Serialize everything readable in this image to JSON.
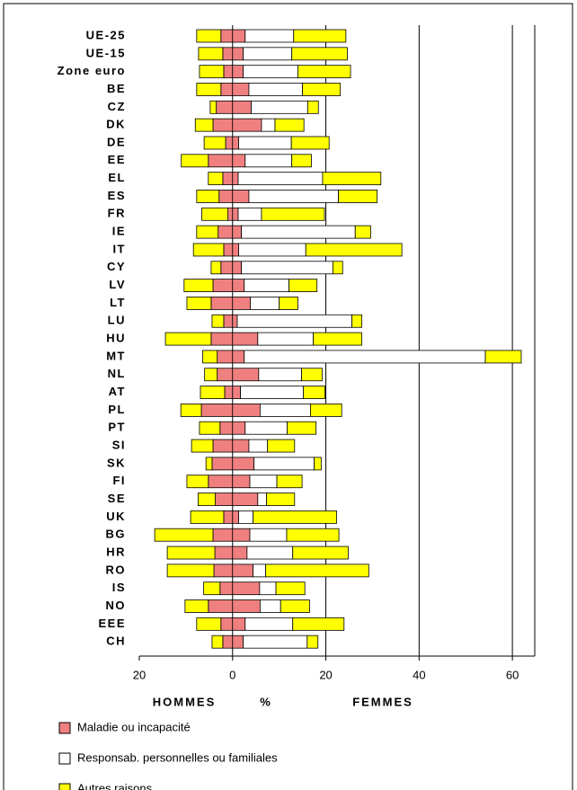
{
  "chart_data": {
    "type": "diverging_bar",
    "x_label_left": "HOMMES",
    "x_label_center": "%",
    "x_label_right": "FEMMES",
    "categories": [
      "UE-25",
      "UE-15",
      "Zone euro",
      "BE",
      "CZ",
      "DK",
      "DE",
      "EE",
      "EL",
      "ES",
      "FR",
      "IE",
      "IT",
      "CY",
      "LV",
      "LT",
      "LU",
      "HU",
      "MT",
      "NL",
      "AT",
      "PL",
      "PT",
      "SI",
      "SK",
      "FI",
      "SE",
      "UK",
      "BG",
      "HR",
      "RO",
      "IS",
      "NO",
      "EEE",
      "CH"
    ],
    "xlim": [
      -20,
      70
    ],
    "xticks": [
      {
        "value": -20,
        "label": "20"
      },
      0,
      20,
      40,
      60
    ],
    "grid": true,
    "series": [
      {
        "name": "Maladie ou incapacité",
        "color": "#f08080",
        "values_hommes": [
          -2.5,
          -2.1,
          -1.9,
          -2.5,
          -3.5,
          -4.2,
          -1.5,
          -5.2,
          -2.1,
          -2.9,
          -1.0,
          -3.1,
          -1.9,
          -2.5,
          -4.2,
          -4.6,
          -1.9,
          -4.6,
          -3.3,
          -3.3,
          -1.7,
          -6.7,
          -2.7,
          -4.2,
          -4.4,
          -5.2,
          -3.7,
          -1.9,
          -4.2,
          -3.8,
          -4.0,
          -2.7,
          -5.2,
          -2.5,
          -2.1
        ],
        "values_femmes": [
          2.7,
          2.3,
          2.3,
          3.5,
          4.0,
          6.2,
          1.3,
          2.7,
          1.2,
          3.5,
          1.2,
          1.9,
          1.3,
          1.9,
          2.5,
          3.8,
          1.0,
          5.4,
          2.5,
          5.6,
          1.7,
          5.9,
          2.7,
          3.5,
          4.6,
          3.7,
          5.4,
          1.3,
          3.7,
          3.1,
          4.4,
          5.8,
          5.9,
          2.7,
          2.3
        ]
      },
      {
        "name": "Responsab. personnelles ou familiales",
        "color": "#ffffff",
        "values_hommes": [
          0,
          0,
          0,
          0,
          0,
          0,
          0,
          0,
          0,
          0,
          0,
          0,
          0,
          0,
          0,
          0,
          0,
          0,
          0,
          0,
          0,
          0,
          0,
          0,
          0,
          0,
          0,
          0,
          0,
          0,
          0,
          0,
          0,
          0,
          0
        ],
        "values_femmes": [
          10.4,
          10.4,
          11.7,
          11.5,
          12.1,
          2.9,
          11.3,
          10.0,
          18.1,
          19.2,
          5.0,
          24.4,
          14.4,
          19.6,
          9.6,
          6.2,
          24.6,
          11.9,
          51.7,
          9.2,
          13.5,
          10.8,
          9.0,
          4.0,
          12.9,
          5.8,
          1.9,
          3.1,
          7.9,
          9.8,
          2.7,
          3.5,
          4.4,
          10.2,
          13.7
        ]
      },
      {
        "name": "Autres raisons",
        "color": "#ffff00",
        "values_hommes": [
          -5.2,
          -5.2,
          -5.2,
          -5.2,
          -1.3,
          -3.8,
          -4.6,
          -5.8,
          -3.1,
          -4.8,
          -5.6,
          -4.6,
          -6.5,
          -2.1,
          -6.2,
          -5.2,
          -2.5,
          -9.8,
          -3.1,
          -2.7,
          -5.2,
          -4.4,
          -4.4,
          -4.6,
          -1.3,
          -4.6,
          -3.7,
          -7.1,
          -12.5,
          -10.2,
          -10.0,
          -3.5,
          -5.0,
          -5.2,
          -2.3
        ],
        "values_femmes": [
          11.2,
          11.9,
          11.3,
          8.1,
          2.3,
          6.2,
          8.1,
          4.2,
          12.5,
          8.3,
          13.5,
          3.3,
          20.6,
          2.1,
          6.0,
          4.0,
          2.1,
          10.4,
          7.7,
          4.4,
          4.6,
          6.7,
          6.2,
          5.8,
          1.5,
          5.4,
          6.0,
          17.9,
          11.2,
          11.9,
          22.1,
          6.2,
          6.2,
          11.0,
          2.3
        ]
      }
    ]
  }
}
